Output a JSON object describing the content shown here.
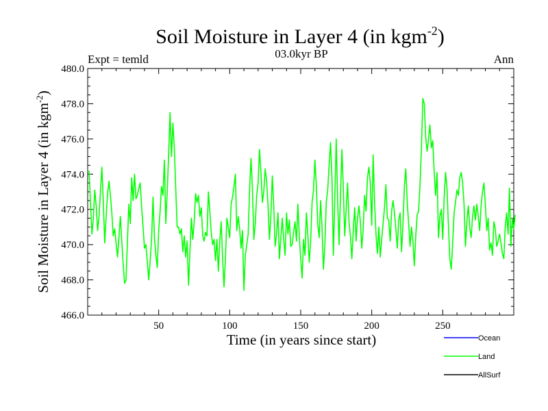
{
  "chart_data": {
    "type": "line",
    "title_main": "Soil Moisture in Layer 4 (in kgm",
    "title_sup": "-2",
    "title_close": ")",
    "subtitle_left": "Expt = temld",
    "subtitle_center": "03.0kyr BP",
    "subtitle_right": "Ann",
    "xlabel": "Time (in years since start)",
    "ylabel_main": "Soil Moisture in Layer 4 (in kgm",
    "ylabel_sup": "-2",
    "ylabel_close": ")",
    "xlim": [
      0,
      300
    ],
    "ylim": [
      466,
      480
    ],
    "x_ticks": [
      50,
      100,
      150,
      200,
      250
    ],
    "x_tick_labels": [
      "50",
      "100",
      "150",
      "200",
      "250"
    ],
    "y_ticks": [
      466,
      468,
      470,
      472,
      474,
      476,
      478,
      480
    ],
    "y_tick_labels": [
      "466.0",
      "468.0",
      "470.0",
      "472.0",
      "474.0",
      "476.0",
      "478.0",
      "480.0"
    ],
    "legend": [
      {
        "name": "Ocean",
        "color": "#0000ff"
      },
      {
        "name": "Land",
        "color": "#00ff00"
      },
      {
        "name": "AllSurf",
        "color": "#000000"
      }
    ],
    "series": [
      {
        "name": "Land",
        "color": "#00ff00",
        "x_start": 1,
        "values": [
          474.2,
          472.3,
          470.6,
          471.5,
          473.1,
          472.2,
          470.8,
          471.6,
          473.0,
          474.4,
          472.4,
          470.1,
          471.6,
          472.9,
          473.6,
          472.8,
          471.8,
          470.5,
          470.9,
          470.1,
          469.3,
          470.4,
          471.6,
          470.2,
          468.9,
          467.8,
          468.0,
          470.2,
          472.3,
          471.2,
          473.8,
          472.5,
          474.0,
          472.6,
          472.8,
          473.2,
          473.5,
          472.1,
          471.0,
          469.8,
          470.0,
          469.0,
          468.0,
          469.1,
          470.3,
          472.7,
          470.4,
          469.4,
          468.7,
          470.8,
          471.9,
          473.3,
          472.8,
          474.8,
          471.2,
          473.0,
          475.1,
          477.5,
          475.0,
          476.9,
          475.5,
          473.2,
          471.0,
          471.0,
          470.6,
          470.9,
          469.6,
          470.5,
          469.3,
          470.2,
          467.7,
          469.6,
          471.5,
          470.3,
          471.3,
          472.9,
          472.4,
          472.8,
          471.6,
          472.1,
          470.5,
          470.2,
          470.7,
          470.5,
          473.0,
          471.9,
          470.7,
          470.0,
          470.3,
          469.1,
          470.3,
          468.5,
          470.2,
          471.3,
          469.2,
          467.6,
          469.2,
          471.5,
          471.0,
          470.4,
          472.3,
          472.7,
          473.3,
          474.0,
          470.8,
          471.6,
          470.9,
          469.8,
          470.8,
          467.4,
          469.4,
          470.0,
          470.6,
          473.1,
          474.9,
          473.2,
          470.3,
          471.2,
          472.8,
          473.5,
          475.4,
          474.1,
          472.4,
          473.0,
          474.3,
          473.6,
          472.2,
          470.3,
          471.7,
          473.9,
          472.2,
          469.9,
          470.6,
          471.8,
          469.2,
          470.4,
          471.5,
          470.3,
          469.4,
          471.8,
          470.6,
          471.4,
          469.9,
          470.0,
          470.7,
          471.3,
          470.2,
          472.3,
          470.5,
          469.2,
          468.1,
          470.3,
          469.4,
          471.8,
          470.6,
          469.0,
          470.2,
          472.4,
          473.1,
          474.8,
          473.3,
          471.2,
          470.4,
          472.5,
          471.0,
          468.6,
          470.0,
          472.4,
          473.1,
          474.5,
          475.8,
          473.8,
          469.4,
          472.6,
          476.0,
          472.5,
          470.0,
          472.8,
          475.4,
          473.2,
          470.5,
          472.0,
          473.5,
          471.3,
          470.5,
          469.2,
          470.8,
          472.1,
          470.2,
          471.5,
          472.2,
          471.3,
          469.8,
          470.9,
          472.8,
          471.9,
          473.8,
          474.4,
          473.5,
          471.1,
          475.1,
          472.4,
          470.6,
          469.5,
          471.0,
          469.3,
          470.3,
          471.2,
          472.1,
          473.4,
          471.5,
          471.4,
          470.2,
          471.9,
          472.5,
          471.8,
          470.9,
          469.8,
          471.4,
          471.8,
          469.6,
          471.2,
          473.3,
          474.3,
          472.4,
          471.2,
          469.9,
          471.0,
          470.2,
          468.8,
          470.5,
          471.7,
          471.9,
          473.4,
          475.5,
          478.3,
          478.0,
          476.1,
          475.3,
          476.0,
          476.8,
          475.5,
          475.9,
          474.1,
          472.8,
          474.1,
          470.4,
          471.6,
          472.0,
          470.3,
          472.7,
          474.1,
          473.2,
          471.1,
          469.2,
          468.6,
          470.1,
          471.8,
          472.4,
          473.1,
          472.8,
          473.8,
          474.1,
          473.5,
          472.3,
          469.9,
          471.3,
          472.2,
          471.0,
          470.4,
          471.6,
          472.2,
          471.4,
          472.3,
          471.6,
          470.8,
          472.2,
          473.0,
          473.5,
          472.3,
          470.8,
          471.5,
          469.7,
          470.1,
          469.4,
          471.3,
          470.9,
          469.9,
          470.2,
          470.6,
          470.1,
          469.5,
          469.2,
          471.0,
          471.8,
          470.6,
          473.2,
          469.9,
          471.5,
          470.9,
          471.7
        ]
      }
    ]
  }
}
